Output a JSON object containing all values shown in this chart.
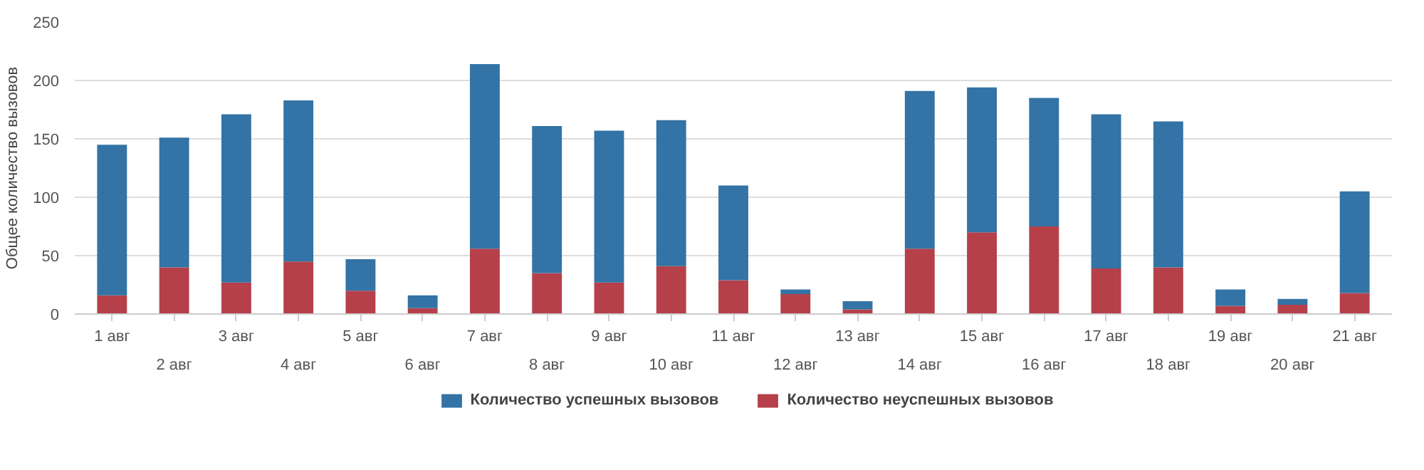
{
  "chart_data": {
    "type": "bar",
    "stacked": true,
    "ylabel": "Общее количество вызовов",
    "categories": [
      "1 авг",
      "2 авг",
      "3 авг",
      "4 авг",
      "5 авг",
      "6 авг",
      "7 авг",
      "8 авг",
      "9 авг",
      "10 авг",
      "11 авг",
      "12 авг",
      "13 авг",
      "14 авг",
      "15 авг",
      "16 авг",
      "17 авг",
      "18 авг",
      "19 авг",
      "20 авг",
      "21 авг"
    ],
    "series": [
      {
        "name": "Количество неуспешных вызовов",
        "color": "#b5404a",
        "values": [
          16,
          40,
          27,
          45,
          20,
          5,
          56,
          35,
          27,
          41,
          29,
          17,
          4,
          56,
          70,
          75,
          39,
          40,
          7,
          8,
          18
        ]
      },
      {
        "name": "Количество успешных вызовов",
        "color": "#3373a5",
        "values": [
          129,
          111,
          144,
          138,
          27,
          11,
          158,
          126,
          130,
          125,
          81,
          4,
          7,
          135,
          124,
          110,
          132,
          125,
          14,
          5,
          87
        ]
      }
    ],
    "ylim": [
      0,
      250
    ],
    "yticks": [
      0,
      50,
      100,
      150,
      200,
      250
    ],
    "grid": "y",
    "legend": "bottom"
  }
}
